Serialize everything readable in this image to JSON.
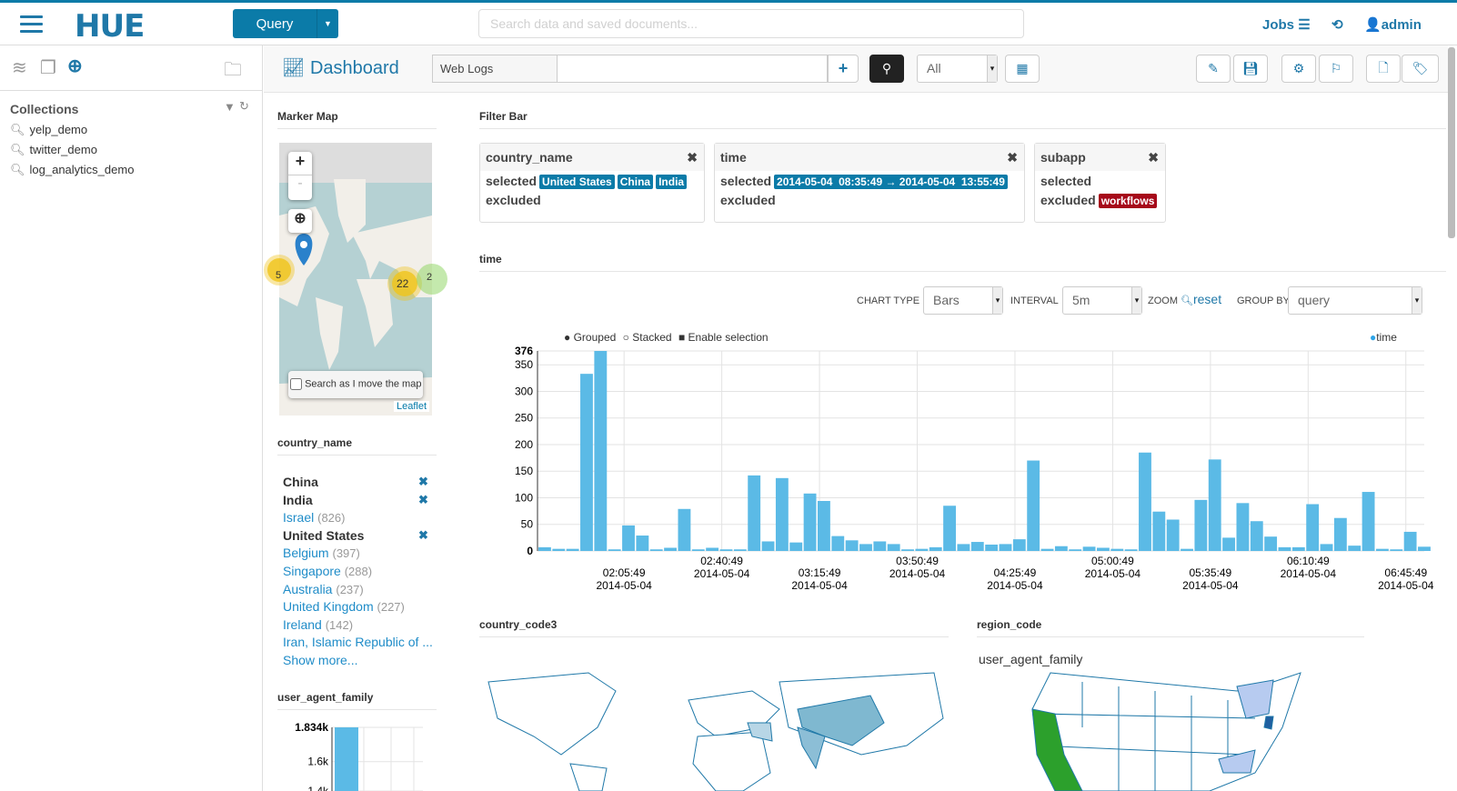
{
  "header": {
    "logo": "HUE",
    "query_button": "Query",
    "search_placeholder": "Search data and saved documents...",
    "jobs": "Jobs",
    "user": "admin"
  },
  "sidebar": {
    "collections_title": "Collections",
    "collections": [
      "yelp_demo",
      "twitter_demo",
      "log_analytics_demo"
    ]
  },
  "toolbar": {
    "title": "Dashboard",
    "collection": "Web Logs",
    "query_value": "",
    "filter_select": "All"
  },
  "marker_map": {
    "title": "Marker Map",
    "zoom_in": "+",
    "zoom_out": "-",
    "clusters": [
      "5",
      "22",
      "2"
    ],
    "search_move": "Search as I move the map",
    "attribution": "Leaflet"
  },
  "filter_bar": {
    "title": "Filter Bar",
    "selected_label": "selected",
    "excluded_label": "excluded",
    "cards": [
      {
        "name": "country_name",
        "selected": [
          "United States",
          "China",
          "India"
        ],
        "excluded": []
      },
      {
        "name": "time",
        "selected": [
          "2014-05-04  08:35:49 → 2014-05-04  13:55:49"
        ],
        "excluded": []
      },
      {
        "name": "subapp",
        "selected": [],
        "excluded": [
          "workflows"
        ]
      }
    ]
  },
  "time_widget": {
    "title": "time",
    "chart_type_label": "CHART TYPE",
    "chart_type": "Bars",
    "interval_label": "INTERVAL",
    "interval": "5m",
    "zoom_label": "ZOOM",
    "reset": "reset",
    "group_by_label": "GROUP BY",
    "group_by": "query",
    "grouped": "Grouped",
    "stacked": "Stacked",
    "enable_selection": "Enable selection"
  },
  "country_facet": {
    "title": "country_name",
    "items": [
      {
        "label": "China",
        "selected": true
      },
      {
        "label": "India",
        "selected": true
      },
      {
        "label": "Israel",
        "count": "(826)"
      },
      {
        "label": "United States",
        "selected": true
      },
      {
        "label": "Belgium",
        "count": "(397)"
      },
      {
        "label": "Singapore",
        "count": "(288)"
      },
      {
        "label": "Australia",
        "count": "(237)"
      },
      {
        "label": "United Kingdom",
        "count": "(227)"
      },
      {
        "label": "Ireland",
        "count": "(142)"
      },
      {
        "label": "Iran, Islamic Republic of ...",
        "count": ""
      }
    ],
    "show_more": "Show more..."
  },
  "uaf_widget": {
    "title": "user_agent_family"
  },
  "country_code3": {
    "title": "country_code3"
  },
  "region_code": {
    "title": "region_code",
    "subtitle": "user_agent_family"
  },
  "colors": {
    "accent": "#1F78A8",
    "bar": "#5BBAE6",
    "danger": "#A6091A"
  },
  "chart_data": [
    {
      "type": "bar",
      "series": [
        {
          "name": "time",
          "values": [
            7,
            4,
            4,
            333,
            376,
            3,
            48,
            29,
            3,
            6,
            79,
            3,
            6,
            3,
            3,
            142,
            18,
            137,
            16,
            108,
            94,
            28,
            20,
            13,
            18,
            13,
            3,
            4,
            7,
            85,
            13,
            17,
            12,
            13,
            22,
            170,
            4,
            9,
            3,
            8,
            6,
            4,
            3,
            185,
            74,
            59,
            4,
            96,
            172,
            25,
            90,
            56,
            27,
            7,
            7,
            88,
            13,
            62,
            10,
            111,
            4,
            3,
            36,
            8
          ]
        }
      ],
      "x_start": "2014-05-04 01:35:00",
      "interval": "5m",
      "x_ticks": [
        [
          "02:05:49",
          "2014-05-04"
        ],
        [
          "02:40:49",
          "2014-05-04"
        ],
        [
          "03:15:49",
          "2014-05-04"
        ],
        [
          "03:50:49",
          "2014-05-04"
        ],
        [
          "04:25:49",
          "2014-05-04"
        ],
        [
          "05:00:49",
          "2014-05-04"
        ],
        [
          "05:35:49",
          "2014-05-04"
        ],
        [
          "06:10:49",
          "2014-05-04"
        ],
        [
          "06:45:49",
          "2014-05-04"
        ]
      ],
      "y_ticks": [
        "0",
        "50",
        "100",
        "150",
        "200",
        "250",
        "300",
        "350",
        "376"
      ],
      "ylim": [
        0,
        376
      ],
      "grid": true,
      "legend": "top-right"
    },
    {
      "type": "bar",
      "title": "user_agent_family",
      "values": [
        1834
      ],
      "y_ticks": [
        "1.4k",
        "1.6k",
        "1.834k"
      ],
      "ylim_visible": [
        1400,
        1834
      ]
    }
  ]
}
